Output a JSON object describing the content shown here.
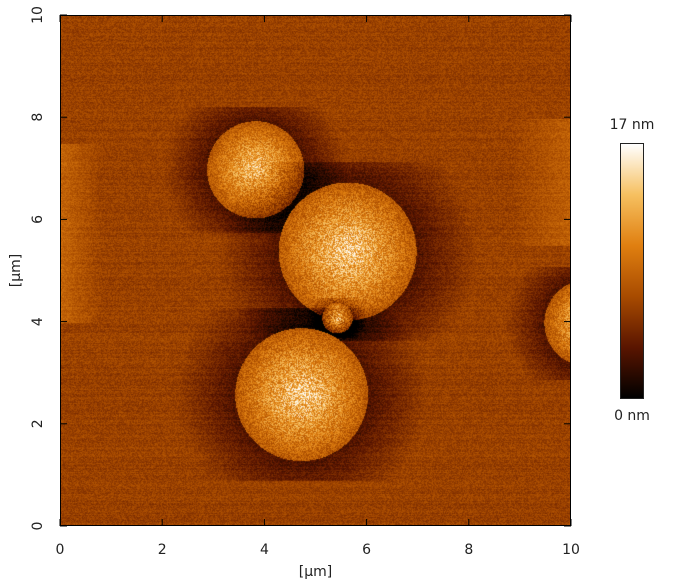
{
  "chart_data": {
    "type": "heatmap",
    "title": "",
    "xlabel": "[µm]",
    "ylabel": "[µm]",
    "xlim": [
      0,
      10
    ],
    "ylim": [
      0,
      10
    ],
    "x_ticks": [
      "0",
      "2",
      "4",
      "6",
      "8",
      "10"
    ],
    "y_ticks": [
      "0",
      "2",
      "4",
      "6",
      "8",
      "10"
    ],
    "colorbar": {
      "max_label": "17 nm",
      "min_label": "0 nm",
      "range": [
        0,
        17
      ],
      "colors": [
        "#000000",
        "#5a1500",
        "#a84b00",
        "#e07f10",
        "#f6c060",
        "#ffffff"
      ]
    },
    "features": [
      {
        "name": "particle",
        "center_x_um": 3.8,
        "center_y_um": 7.0,
        "radius_um": 0.95,
        "height_nm": 14
      },
      {
        "name": "particle",
        "center_x_um": 5.6,
        "center_y_um": 5.4,
        "radius_um": 1.35,
        "height_nm": 15
      },
      {
        "name": "particle",
        "center_x_um": 5.4,
        "center_y_um": 4.1,
        "radius_um": 0.3,
        "height_nm": 16
      },
      {
        "name": "particle",
        "center_x_um": 4.7,
        "center_y_um": 2.6,
        "radius_um": 1.3,
        "height_nm": 15
      },
      {
        "name": "particle",
        "center_x_um": 10.3,
        "center_y_um": 4.0,
        "radius_um": 0.85,
        "height_nm": 14
      }
    ]
  }
}
